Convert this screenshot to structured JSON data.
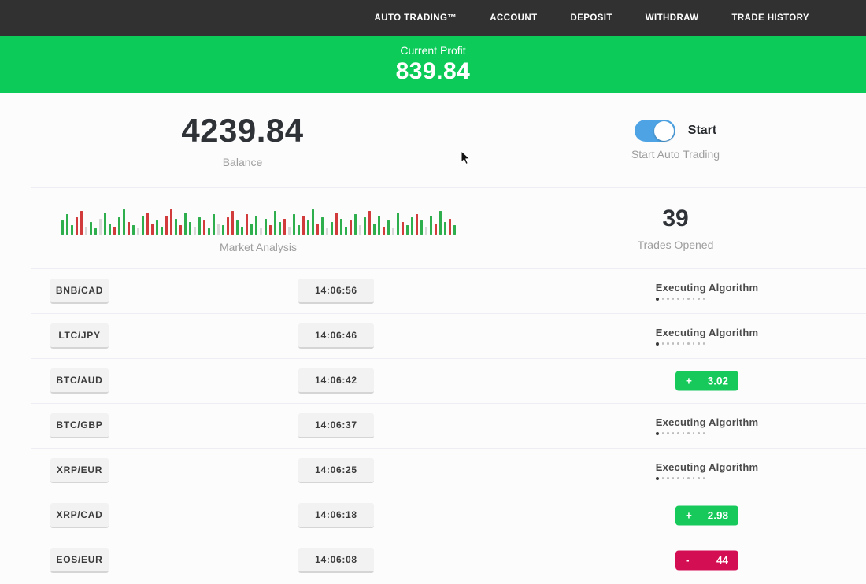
{
  "nav": {
    "items": [
      {
        "label": "AUTO TRADING™"
      },
      {
        "label": "ACCOUNT"
      },
      {
        "label": "DEPOSIT"
      },
      {
        "label": "WITHDRAW"
      },
      {
        "label": "TRADE HISTORY"
      }
    ]
  },
  "profit_banner": {
    "label": "Current Profit",
    "value": "839.84",
    "color": "#0ccb58"
  },
  "stats": {
    "balance": {
      "value": "4239.84",
      "label": "Balance"
    },
    "auto_trading": {
      "toggle_label": "Start",
      "label": "Start Auto Trading",
      "toggle_on": true,
      "toggle_color": "#4da3e3"
    },
    "market": {
      "label": "Market Analysis",
      "bars": "g18,g26,g12,r22,r30,n10,g16,g8,n20,g28,g14,r10,g22,g32,r16,g12,n8,g24,r28,r14,g18,g10,r24,r32,g20,r12,g28,g16,n10,g22,r18,g8,g26,n14,g12,r22,r30,g18,g10,r26,g14,g24,n8,g20,r12,g30,g16,r20,n10,g26,g12,r24,g18,g32,r14,g22,n8,g16,r28,g20,g10,r18,g26,n12,g22,r30,g14,g24,r10,g18,n8,g28,r16,g12,g22,r26,g18,n10,g24,r14,g30,g16,r20,g12",
      "bar_colors": {
        "g": "#2fae4e",
        "r": "#d23b3b",
        "n": "#d8d8d8"
      }
    },
    "trades_opened": {
      "value": "39",
      "label": "Trades Opened"
    }
  },
  "trades": {
    "executing_label": "Executing Algorithm",
    "rows": [
      {
        "pair": "BNB/CAD",
        "time": "14:06:56",
        "result": null
      },
      {
        "pair": "LTC/JPY",
        "time": "14:06:46",
        "result": null
      },
      {
        "pair": "BTC/AUD",
        "time": "14:06:42",
        "result": {
          "type": "profit",
          "sign": "+",
          "amount": "3.02"
        }
      },
      {
        "pair": "BTC/GBP",
        "time": "14:06:37",
        "result": null
      },
      {
        "pair": "XRP/EUR",
        "time": "14:06:25",
        "result": null
      },
      {
        "pair": "XRP/CAD",
        "time": "14:06:18",
        "result": {
          "type": "profit",
          "sign": "+",
          "amount": "2.98"
        }
      },
      {
        "pair": "EOS/EUR",
        "time": "14:06:08",
        "result": {
          "type": "loss",
          "sign": "-",
          "amount": "44"
        }
      }
    ]
  },
  "colors": {
    "navbar": "#313131",
    "green": "#16c95a",
    "red": "#d40e52",
    "toggle_blue": "#4da3e3"
  }
}
